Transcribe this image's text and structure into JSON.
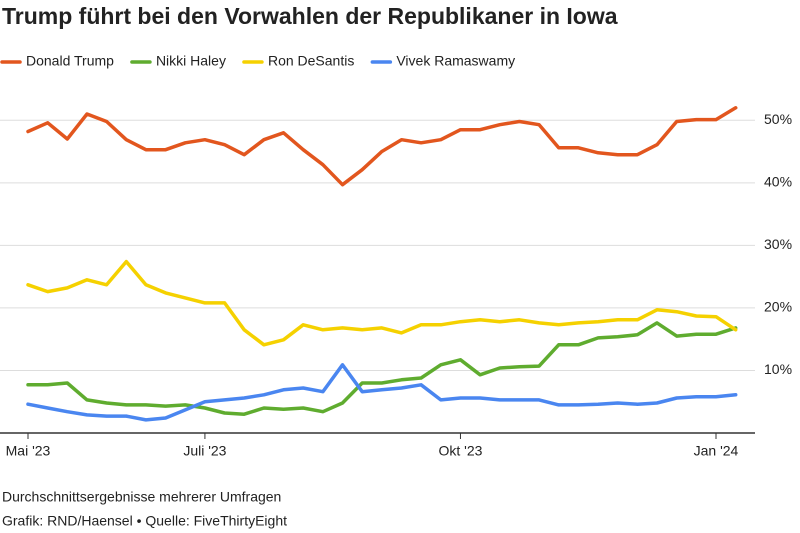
{
  "chart_data": {
    "type": "line",
    "title": "Trump führt bei den Vorwahlen der Republikaner in Iowa",
    "subtitle": "Durchschnittsergebnisse mehrerer Umfragen",
    "source": "Grafik: RND/Haensel • Quelle: FiveThirtyEight",
    "categories": [
      "Mai '23",
      null,
      null,
      null,
      null,
      null,
      null,
      null,
      null,
      "Juli '23",
      null,
      null,
      null,
      null,
      null,
      null,
      null,
      null,
      null,
      null,
      null,
      null,
      "Okt '23",
      null,
      null,
      null,
      null,
      null,
      null,
      null,
      null,
      null,
      null,
      null,
      null,
      "Jan '24",
      null
    ],
    "series": [
      {
        "name": "Donald Trump",
        "color": "#e2561e",
        "values": [
          48.2,
          49.6,
          47,
          51,
          49.8,
          46.9,
          45.3,
          45.3,
          46.4,
          46.9,
          46.1,
          44.5,
          46.9,
          48,
          45.3,
          42.9,
          39.7,
          42.1,
          45,
          46.9,
          46.4,
          46.9,
          48.5,
          48.5,
          49.3,
          49.8,
          49.3,
          45.6,
          45.6,
          44.8,
          44.5,
          44.5,
          46.1,
          49.8,
          50.1,
          50.1,
          52
        ]
      },
      {
        "name": "Nikki Haley",
        "color": "#5fac2f",
        "values": [
          7.7,
          7.7,
          8,
          5.3,
          4.8,
          4.5,
          4.5,
          4.3,
          4.5,
          4,
          3.2,
          3,
          4,
          3.8,
          4,
          3.4,
          4.8,
          8,
          8,
          8.5,
          8.8,
          10.9,
          11.7,
          9.3,
          10.4,
          10.6,
          10.7,
          14.1,
          14.1,
          15.2,
          15.4,
          15.7,
          17.6,
          15.5,
          15.8,
          15.8,
          16.8
        ]
      },
      {
        "name": "Ron DeSantis",
        "color": "#f5d100",
        "values": [
          23.7,
          22.6,
          23.2,
          24.5,
          23.7,
          27.4,
          23.7,
          22.4,
          21.6,
          20.8,
          20.8,
          16.5,
          14.1,
          14.9,
          17.3,
          16.5,
          16.8,
          16.5,
          16.8,
          16,
          17.3,
          17.3,
          17.8,
          18.1,
          17.8,
          18.1,
          17.6,
          17.3,
          17.6,
          17.8,
          18.1,
          18.1,
          19.7,
          19.4,
          18.7,
          18.6,
          16.5
        ]
      },
      {
        "name": "Vivek Ramaswamy",
        "color": "#4a86f0",
        "values": [
          4.6,
          4,
          3.4,
          2.9,
          2.7,
          2.7,
          2.1,
          2.4,
          3.7,
          5,
          5.3,
          5.6,
          6.1,
          6.9,
          7.2,
          6.6,
          10.9,
          6.6,
          6.9,
          7.2,
          7.7,
          5.3,
          5.6,
          5.6,
          5.3,
          5.3,
          5.3,
          4.5,
          4.5,
          4.6,
          4.8,
          4.6,
          4.8,
          5.6,
          5.8,
          5.8,
          6.1
        ]
      }
    ],
    "ylim": [
      0,
      55
    ],
    "yticks": [
      {
        "value": 10,
        "label": "10%"
      },
      {
        "value": 20,
        "label": "20%"
      },
      {
        "value": 30,
        "label": "30%"
      },
      {
        "value": 40,
        "label": "40%"
      },
      {
        "value": 50,
        "label": "50%"
      }
    ],
    "grid": true
  }
}
